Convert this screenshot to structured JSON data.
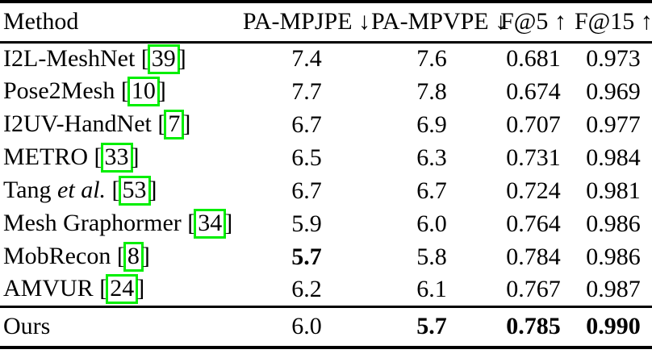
{
  "page": {
    "background": "#ffffff"
  },
  "table": {
    "bracket_open": "[",
    "bracket_close": "]",
    "colors": {
      "citation_box_border": "#00ee00",
      "rule": "#000000",
      "text": "#000000"
    },
    "header": {
      "method": "Method",
      "cols": [
        "PA-MPJPE ↓",
        "PA-MPVPE ↓",
        "F@5 ↑",
        "F@15 ↑"
      ]
    },
    "rows": [
      {
        "method": "I2L-MeshNet",
        "cite": "39",
        "values": [
          "7.4",
          "7.6",
          "0.681",
          "0.973"
        ]
      },
      {
        "method": "Pose2Mesh",
        "cite": "10",
        "values": [
          "7.7",
          "7.8",
          "0.674",
          "0.969"
        ]
      },
      {
        "method": "I2UV-HandNet",
        "cite": "7",
        "values": [
          "6.7",
          "6.9",
          "0.707",
          "0.977"
        ]
      },
      {
        "method": "METRO",
        "cite": "33",
        "values": [
          "6.5",
          "6.3",
          "0.731",
          "0.984"
        ]
      },
      {
        "method": "Tang ",
        "method_italic": "et al.",
        "cite": "53",
        "values": [
          "6.7",
          "6.7",
          "0.724",
          "0.981"
        ]
      },
      {
        "method": "Mesh Graphormer",
        "cite": "34",
        "values": [
          "5.9",
          "6.0",
          "0.764",
          "0.986"
        ]
      },
      {
        "method": "MobRecon",
        "cite": "8",
        "values": [
          "5.7",
          "5.8",
          "0.784",
          "0.986"
        ]
      },
      {
        "method": "AMVUR",
        "cite": "24",
        "values": [
          "6.2",
          "6.1",
          "0.767",
          "0.987"
        ]
      }
    ],
    "ours": {
      "method": "Ours",
      "values": [
        "6.0",
        "5.7",
        "0.785",
        "0.990"
      ]
    }
  }
}
